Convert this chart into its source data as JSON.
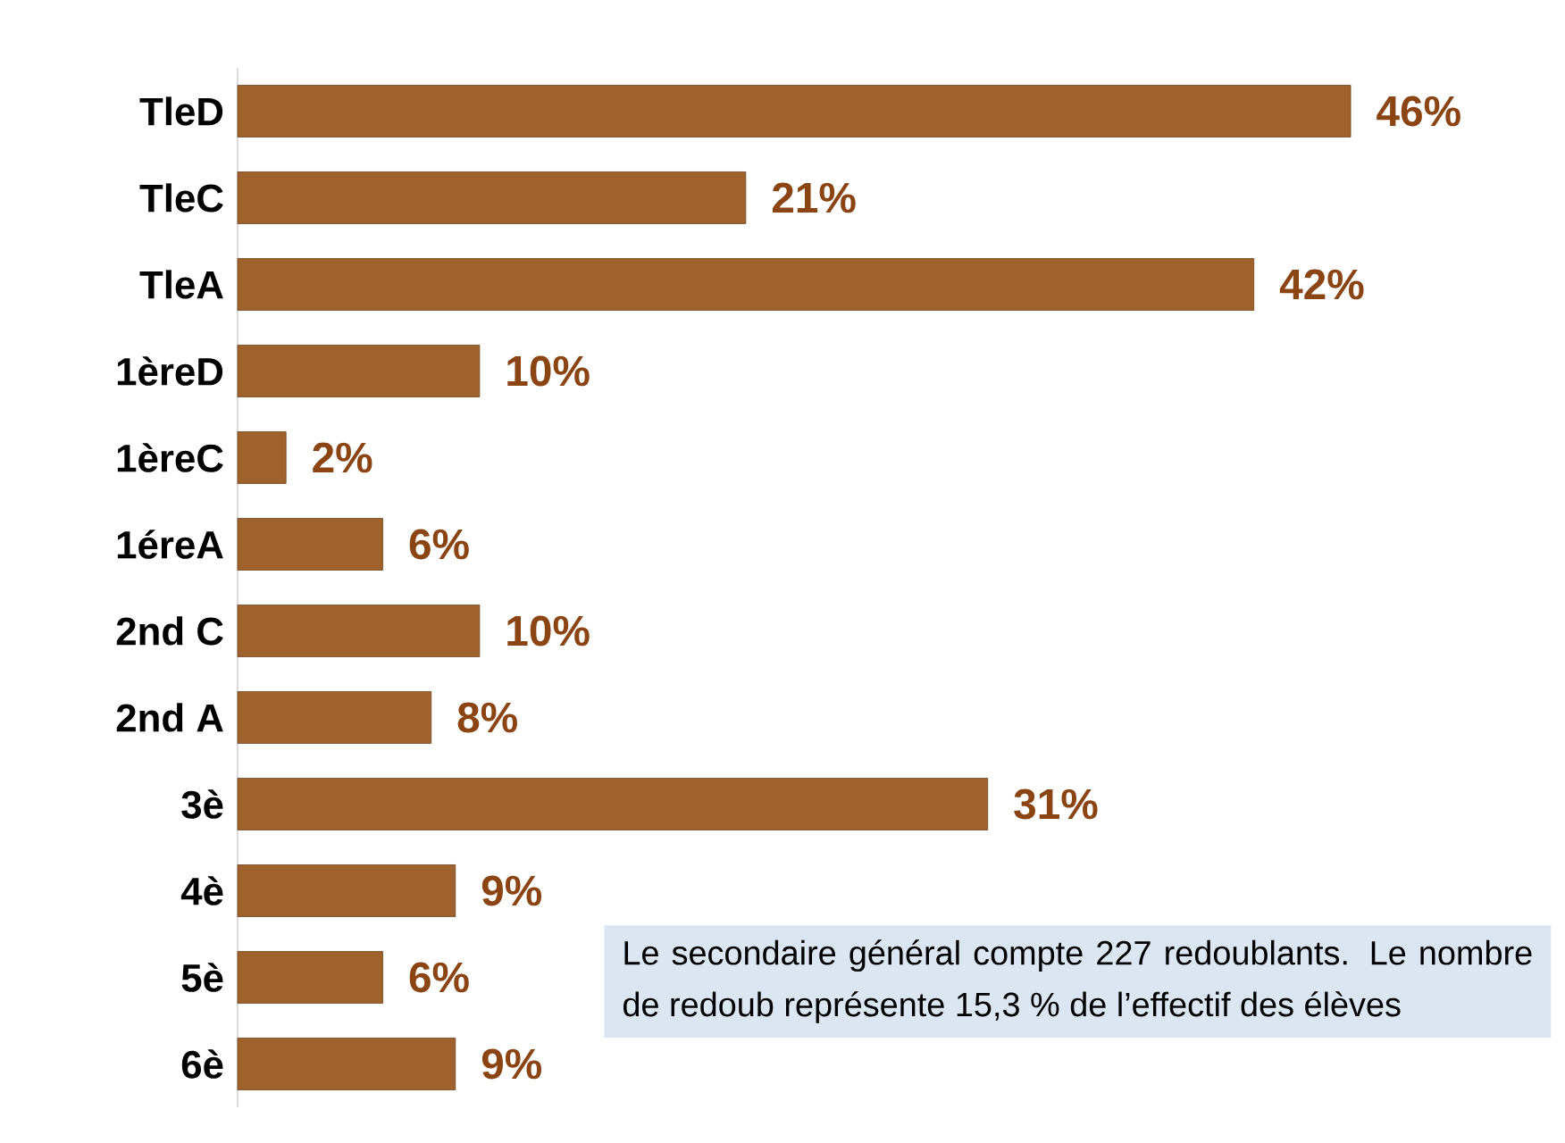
{
  "chart_data": {
    "type": "bar",
    "orientation": "horizontal",
    "color": "#a0622c",
    "categories": [
      "TleD",
      "TleC",
      "TleA",
      "1èreD",
      "1èreC",
      "1éreA",
      "2nd C",
      "2nd A",
      "3è",
      "4è",
      "5è",
      "6è"
    ],
    "values": [
      46,
      21,
      42,
      10,
      2,
      6,
      10,
      8,
      31,
      9,
      6,
      9
    ],
    "value_labels": [
      "46%",
      "21%",
      "42%",
      "10%",
      "2%",
      "6%",
      "10%",
      "8%",
      "31%",
      "9%",
      "6%",
      "9%"
    ],
    "annotations": [
      "Le secondaire général compte 227 redoublants. Le nombre de redoub représente 15,3 % de l’effectif des élèves"
    ]
  }
}
